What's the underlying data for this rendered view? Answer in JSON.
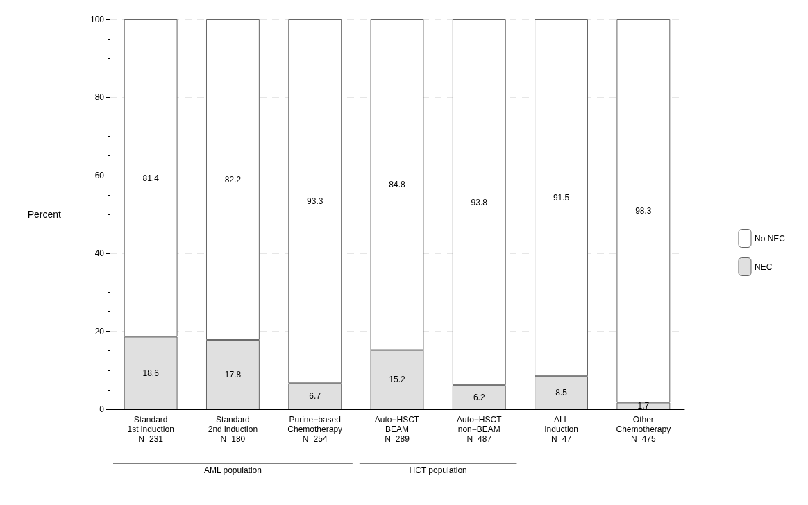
{
  "chart_data": {
    "type": "bar",
    "stacked": true,
    "ylabel": "Percent",
    "categories": [
      "Standard\n1st induction\nN=231",
      "Standard\n2nd induction\nN=180",
      "Purine−based\nChemotherapy\nN=254",
      "Auto−HSCT\nBEAM\nN=289",
      "Auto−HSCT\nnon−BEAM\nN=487",
      "ALL\nInduction\nN=47",
      "Other\nChemotherapy\nN=475"
    ],
    "series": [
      {
        "name": "NEC",
        "color": "#e0e0e0",
        "values": [
          18.6,
          17.8,
          6.7,
          15.2,
          6.2,
          8.5,
          1.7
        ]
      },
      {
        "name": "No NEC",
        "color": "#ffffff",
        "values": [
          81.4,
          82.2,
          93.3,
          84.8,
          93.8,
          91.5,
          98.3
        ]
      }
    ],
    "ylim": [
      0,
      100
    ],
    "yticks": [
      0,
      20,
      40,
      60,
      80,
      100
    ],
    "grid": "y",
    "legend": "right",
    "data_labels": true,
    "annotations": [
      "AML population",
      "HCT population"
    ]
  }
}
